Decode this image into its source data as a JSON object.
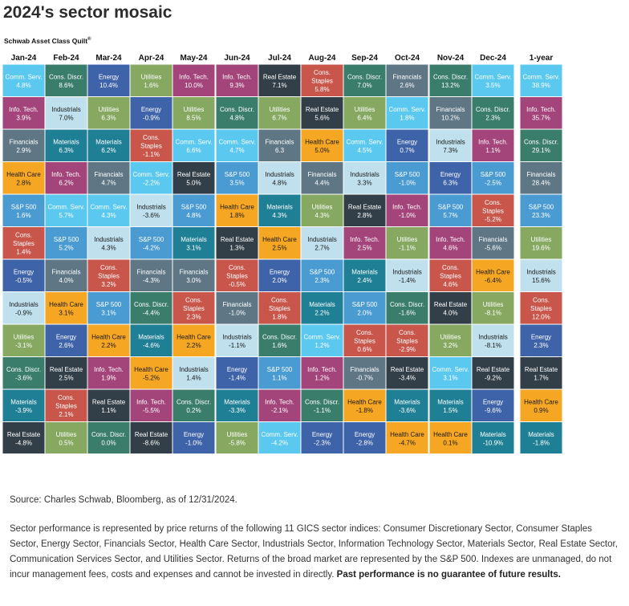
{
  "title": "2024's sector mosaic",
  "subtitle": "Schwab Asset Class Quilt",
  "subtitle_mark": "®",
  "source": "Source: Charles Schwab, Bloomberg, as of 12/31/2024.",
  "disclaimer": "Sector performance is represented by price returns of the following 11 GICS sector indices: Consumer Discretionary Sector, Consumer Staples Sector, Energy Sector, Financials Sector, Health Care Sector, Industrials Sector, Information Technology Sector, Materials Sector, Real Estate Sector, Communication Services Sector, and Utilities Sector. Returns of the broad market are represented by the S&P 500. Indexes are unmanaged, do not incur management fees, costs and expenses and cannot be invested in directly.",
  "disclaimer_bold": "Past performance is no guarantee of future results.",
  "colors": {
    "Comm. Serv.": "#5bc8f0",
    "Cons. Discr.": "#3a7d6b",
    "Energy": "#3f63a8",
    "Utilities": "#86a860",
    "Info. Tech.": "#a3457a",
    "Real Estate": "#333f48",
    "Cons. Staples": "#c9564b",
    "Financials": "#5f7785",
    "Industrials": "#bfe0ec",
    "Health Care": "#f5a623",
    "S&P 500": "#4a9bd2",
    "Materials": "#1e7f95"
  },
  "dark_text_sectors": [
    "Industrials",
    "Health Care"
  ],
  "chart_data": {
    "type": "table",
    "columns": [
      "Jan-24",
      "Feb-24",
      "Mar-24",
      "Apr-24",
      "May-24",
      "Jun-24",
      "Jul-24",
      "Aug-24",
      "Sep-24",
      "Oct-24",
      "Nov-24",
      "Dec-24",
      "1-year"
    ],
    "grid": [
      [
        {
          "sector": "Comm. Serv.",
          "label": "Comm. Serv.",
          "value": "4.8%"
        },
        {
          "sector": "Info. Tech.",
          "label": "Info. Tech.",
          "value": "3.9%"
        },
        {
          "sector": "Financials",
          "label": "Financials",
          "value": "2.9%"
        },
        {
          "sector": "Health Care",
          "label": "Health Care",
          "value": "2.8%"
        },
        {
          "sector": "S&P 500",
          "label": "S&P 500",
          "value": "1.6%"
        },
        {
          "sector": "Cons. Staples",
          "label": "Cons. Staples",
          "value": "1.4%"
        },
        {
          "sector": "Energy",
          "label": "Energy",
          "value": "-0.5%"
        },
        {
          "sector": "Industrials",
          "label": "Industrials",
          "value": "-0.9%"
        },
        {
          "sector": "Utilities",
          "label": "Utilities",
          "value": "-3.1%"
        },
        {
          "sector": "Cons. Discr.",
          "label": "Cons. Discr.",
          "value": "-3.6%"
        },
        {
          "sector": "Materials",
          "label": "Materials",
          "value": "-3.9%"
        },
        {
          "sector": "Real Estate",
          "label": "Real Estate",
          "value": "-4.8%"
        }
      ],
      [
        {
          "sector": "Cons. Discr.",
          "label": "Cons. Discr.",
          "value": "8.6%"
        },
        {
          "sector": "Industrials",
          "label": "Industrials",
          "value": "7.0%"
        },
        {
          "sector": "Materials",
          "label": "Materials",
          "value": "6.3%"
        },
        {
          "sector": "Info. Tech.",
          "label": "Info. Tech.",
          "value": "6.2%"
        },
        {
          "sector": "Comm. Serv.",
          "label": "Comm. Serv.",
          "value": "5.7%"
        },
        {
          "sector": "S&P 500",
          "label": "S&P 500",
          "value": "5.2%"
        },
        {
          "sector": "Financials",
          "label": "Financials",
          "value": "4.0%"
        },
        {
          "sector": "Health Care",
          "label": "Health Care",
          "value": "3.1%"
        },
        {
          "sector": "Energy",
          "label": "Energy",
          "value": "2.6%"
        },
        {
          "sector": "Real Estate",
          "label": "Real Estate",
          "value": "2.5%"
        },
        {
          "sector": "Cons. Staples",
          "label": "Cons. Staples",
          "value": "2.1%"
        },
        {
          "sector": "Utilities",
          "label": "Utilities",
          "value": "0.5%"
        }
      ],
      [
        {
          "sector": "Energy",
          "label": "Energy",
          "value": "10.4%"
        },
        {
          "sector": "Utilities",
          "label": "Utilities",
          "value": "6.3%"
        },
        {
          "sector": "Materials",
          "label": "Materials",
          "value": "6.2%"
        },
        {
          "sector": "Financials",
          "label": "Financials",
          "value": "4.7%"
        },
        {
          "sector": "Comm. Serv.",
          "label": "Comm. Serv.",
          "value": "4.3%"
        },
        {
          "sector": "Industrials",
          "label": "Industrials",
          "value": "4.3%"
        },
        {
          "sector": "Cons. Staples",
          "label": "Cons. Staples",
          "value": "3.2%"
        },
        {
          "sector": "S&P 500",
          "label": "S&P 500",
          "value": "3.1%"
        },
        {
          "sector": "Health Care",
          "label": "Health Care",
          "value": "2.2%"
        },
        {
          "sector": "Info. Tech.",
          "label": "Info. Tech.",
          "value": "1.9%"
        },
        {
          "sector": "Real Estate",
          "label": "Real Estate",
          "value": "1.1%"
        },
        {
          "sector": "Cons. Discr.",
          "label": "Cons. Discr.",
          "value": "0.0%"
        }
      ],
      [
        {
          "sector": "Utilities",
          "label": "Utilities",
          "value": "1.6%"
        },
        {
          "sector": "Energy",
          "label": "Energy",
          "value": "-0.9%"
        },
        {
          "sector": "Cons. Staples",
          "label": "Cons. Staples",
          "value": "-1.1%"
        },
        {
          "sector": "Comm. Serv.",
          "label": "Comm. Serv.",
          "value": "-2.2%"
        },
        {
          "sector": "Industrials",
          "label": "Industrials",
          "value": "-3.6%"
        },
        {
          "sector": "S&P 500",
          "label": "S&P 500",
          "value": "-4.2%"
        },
        {
          "sector": "Financials",
          "label": "Financials",
          "value": "-4.3%"
        },
        {
          "sector": "Cons. Discr.",
          "label": "Cons. Discr.",
          "value": "-4.4%"
        },
        {
          "sector": "Materials",
          "label": "Materials",
          "value": "-4.6%"
        },
        {
          "sector": "Health Care",
          "label": "Health Care",
          "value": "-5.2%"
        },
        {
          "sector": "Info. Tech.",
          "label": "Info. Tech.",
          "value": "-5.5%"
        },
        {
          "sector": "Real Estate",
          "label": "Real Estate",
          "value": "-8.6%"
        }
      ],
      [
        {
          "sector": "Info. Tech.",
          "label": "Info. Tech.",
          "value": "10.0%"
        },
        {
          "sector": "Utilities",
          "label": "Utilities",
          "value": "8.5%"
        },
        {
          "sector": "Comm. Serv.",
          "label": "Comm. Serv.",
          "value": "6.6%"
        },
        {
          "sector": "Real Estate",
          "label": "Real Estate",
          "value": "5.0%"
        },
        {
          "sector": "S&P 500",
          "label": "S&P 500",
          "value": "4.8%"
        },
        {
          "sector": "Materials",
          "label": "Materials",
          "value": "3.1%"
        },
        {
          "sector": "Financials",
          "label": "Financials",
          "value": "3.0%"
        },
        {
          "sector": "Cons. Staples",
          "label": "Cons. Staples",
          "value": "2.3%"
        },
        {
          "sector": "Health Care",
          "label": "Health Care",
          "value": "2.2%"
        },
        {
          "sector": "Industrials",
          "label": "Industrials",
          "value": "1.4%"
        },
        {
          "sector": "Cons. Discr.",
          "label": "Cons. Discr.",
          "value": "0.2%"
        },
        {
          "sector": "Energy",
          "label": "Energy",
          "value": "-1.0%"
        }
      ],
      [
        {
          "sector": "Info. Tech.",
          "label": "Info. Tech.",
          "value": "9.3%"
        },
        {
          "sector": "Cons. Discr.",
          "label": "Cons. Discr.",
          "value": "4.8%"
        },
        {
          "sector": "Comm. Serv.",
          "label": "Comm. Serv.",
          "value": "4.7%"
        },
        {
          "sector": "S&P 500",
          "label": "S&P 500",
          "value": "3.5%"
        },
        {
          "sector": "Health Care",
          "label": "Health Care",
          "value": "1.8%"
        },
        {
          "sector": "Real Estate",
          "label": "Real Estate",
          "value": "1.3%"
        },
        {
          "sector": "Cons. Staples",
          "label": "Cons. Staples",
          "value": "-0.5%"
        },
        {
          "sector": "Financials",
          "label": "Financials",
          "value": "-1.0%"
        },
        {
          "sector": "Industrials",
          "label": "Industrials",
          "value": "-1.1%"
        },
        {
          "sector": "Energy",
          "label": "Energy",
          "value": "-1.4%"
        },
        {
          "sector": "Materials",
          "label": "Materials",
          "value": "-3.3%"
        },
        {
          "sector": "Utilities",
          "label": "Utilities",
          "value": "-5.8%"
        }
      ],
      [
        {
          "sector": "Real Estate",
          "label": "Real Estate",
          "value": "7.1%"
        },
        {
          "sector": "Utilities",
          "label": "Utilities",
          "value": "6.7%"
        },
        {
          "sector": "Financials",
          "label": "Financials",
          "value": "6.3"
        },
        {
          "sector": "Industrials",
          "label": "Industrials",
          "value": "4.8%"
        },
        {
          "sector": "Materials",
          "label": "Materials",
          "value": "4.3%"
        },
        {
          "sector": "Health Care",
          "label": "Health Care",
          "value": "2.5%"
        },
        {
          "sector": "Energy",
          "label": "Energy",
          "value": "2.0%"
        },
        {
          "sector": "Cons. Staples",
          "label": "Cons. Staples",
          "value": "1.8%"
        },
        {
          "sector": "Cons. Discr.",
          "label": "Cons. Discr.",
          "value": "1.6%"
        },
        {
          "sector": "S&P 500",
          "label": "S&P 500",
          "value": "1.1%"
        },
        {
          "sector": "Info. Tech.",
          "label": "Info. Tech.",
          "value": "-2.1%"
        },
        {
          "sector": "Comm. Serv.",
          "label": "Comm. Serv.",
          "value": "-4.2%"
        }
      ],
      [
        {
          "sector": "Cons. Staples",
          "label": "Cons. Staples",
          "value": "5.8%"
        },
        {
          "sector": "Real Estate",
          "label": "Real Estate",
          "value": "5.6%"
        },
        {
          "sector": "Health Care",
          "label": "Health Care",
          "value": "5.0%"
        },
        {
          "sector": "Financials",
          "label": "Financials",
          "value": "4.4%"
        },
        {
          "sector": "Utilities",
          "label": "Utilities",
          "value": "4.3%"
        },
        {
          "sector": "Industrials",
          "label": "Industrials",
          "value": "2.7%"
        },
        {
          "sector": "S&P 500",
          "label": "S&P 500",
          "value": "2.3%"
        },
        {
          "sector": "Materials",
          "label": "Materials",
          "value": "2.2%"
        },
        {
          "sector": "Comm. Serv.",
          "label": "Comm. Serv.",
          "value": "1.2%"
        },
        {
          "sector": "Info. Tech.",
          "label": "Info. Tech.",
          "value": "1.2%"
        },
        {
          "sector": "Cons. Discr.",
          "label": "Cons. Discr.",
          "value": "-1.1%"
        },
        {
          "sector": "Energy",
          "label": "Energy",
          "value": "-2.3%"
        }
      ],
      [
        {
          "sector": "Cons. Discr.",
          "label": "Cons. Discr.",
          "value": "7.0%"
        },
        {
          "sector": "Utilities",
          "label": "Utilities",
          "value": "6.4%"
        },
        {
          "sector": "Comm. Serv.",
          "label": "Comm. Serv.",
          "value": "4.5%"
        },
        {
          "sector": "Industrials",
          "label": "Industrials",
          "value": "3.3%"
        },
        {
          "sector": "Real Estate",
          "label": "Real Estate",
          "value": "2.8%"
        },
        {
          "sector": "Info. Tech.",
          "label": "Info. Tech.",
          "value": "2.5%"
        },
        {
          "sector": "Materials",
          "label": "Materials",
          "value": "2.4%"
        },
        {
          "sector": "S&P 500",
          "label": "S&P 500",
          "value": "2.0%"
        },
        {
          "sector": "Cons. Staples",
          "label": "Cons. Staples",
          "value": "0.6%"
        },
        {
          "sector": "Financials",
          "label": "Financials",
          "value": "-0.7%"
        },
        {
          "sector": "Health Care",
          "label": "Health Care",
          "value": "-1.8%"
        },
        {
          "sector": "Energy",
          "label": "Energy",
          "value": "-2.8%"
        }
      ],
      [
        {
          "sector": "Financials",
          "label": "Financials",
          "value": "2.6%"
        },
        {
          "sector": "Comm. Serv.",
          "label": "Comm. Serv.",
          "value": "1.8%"
        },
        {
          "sector": "Energy",
          "label": "Energy",
          "value": "0.7%"
        },
        {
          "sector": "S&P 500",
          "label": "S&P 500",
          "value": "-1.0%"
        },
        {
          "sector": "Info. Tech.",
          "label": "Info. Tech.",
          "value": "-1.0%"
        },
        {
          "sector": "Utilities",
          "label": "Utilities",
          "value": "-1.1%"
        },
        {
          "sector": "Industrials",
          "label": "Industrials",
          "value": "-1.4%"
        },
        {
          "sector": "Cons. Discr.",
          "label": "Cons. Discr.",
          "value": "-1.6%"
        },
        {
          "sector": "Cons. Staples",
          "label": "Cons. Staples",
          "value": "-2.9%"
        },
        {
          "sector": "Real Estate",
          "label": "Real Estate",
          "value": "-3.4%"
        },
        {
          "sector": "Materials",
          "label": "Materials",
          "value": "-3.6%"
        },
        {
          "sector": "Health Care",
          "label": "Health Care",
          "value": "-4.7%"
        }
      ],
      [
        {
          "sector": "Cons. Discr.",
          "label": "Cons. Discr.",
          "value": "13.2%"
        },
        {
          "sector": "Financials",
          "label": "Financials",
          "value": "10.2%"
        },
        {
          "sector": "Industrials",
          "label": "Industrials",
          "value": "7.3%"
        },
        {
          "sector": "Energy",
          "label": "Energy",
          "value": "6.3%"
        },
        {
          "sector": "S&P 500",
          "label": "S&P 500",
          "value": "5.7%"
        },
        {
          "sector": "Info. Tech.",
          "label": "Info. Tech.",
          "value": "4.6%"
        },
        {
          "sector": "Cons. Staples",
          "label": "Cons. Staples",
          "value": "4.6%"
        },
        {
          "sector": "Real Estate",
          "label": "Real Estate",
          "value": "4.0%"
        },
        {
          "sector": "Utilities",
          "label": "Utilities",
          "value": "3.2%"
        },
        {
          "sector": "Comm. Serv.",
          "label": "Comm. Serv.",
          "value": "3.1%"
        },
        {
          "sector": "Materials",
          "label": "Materials",
          "value": "1.5%"
        },
        {
          "sector": "Health Care",
          "label": "Health Care",
          "value": "0.1%"
        }
      ],
      [
        {
          "sector": "Comm. Serv.",
          "label": "Comm. Serv.",
          "value": "3.5%"
        },
        {
          "sector": "Cons. Discr.",
          "label": "Cons. Discr.",
          "value": "2.3%"
        },
        {
          "sector": "Info. Tech.",
          "label": "Info. Tech.",
          "value": "1.1%"
        },
        {
          "sector": "S&P 500",
          "label": "S&P 500",
          "value": "-2.5%"
        },
        {
          "sector": "Cons. Staples",
          "label": "Cons. Staples",
          "value": "-5.2%"
        },
        {
          "sector": "Financials",
          "label": "Financials",
          "value": "-5.6%"
        },
        {
          "sector": "Health Care",
          "label": "Health Care",
          "value": "-6.4%"
        },
        {
          "sector": "Utilities",
          "label": "Utilities",
          "value": "-8.1%"
        },
        {
          "sector": "Industrials",
          "label": "Industrials",
          "value": "-8.1%"
        },
        {
          "sector": "Real Estate",
          "label": "Real Estate",
          "value": "-9.2%"
        },
        {
          "sector": "Energy",
          "label": "Energy",
          "value": "-9.6%"
        },
        {
          "sector": "Materials",
          "label": "Materials",
          "value": "-10.9%"
        }
      ],
      [
        {
          "sector": "Comm. Serv.",
          "label": "Comm. Serv.",
          "value": "38.9%"
        },
        {
          "sector": "Info. Tech.",
          "label": "Info. Tech.",
          "value": "35.7%"
        },
        {
          "sector": "Cons. Discr.",
          "label": "Cons. Discr.",
          "value": "29.1%"
        },
        {
          "sector": "Financials",
          "label": "Financials",
          "value": "28.4%"
        },
        {
          "sector": "S&P 500",
          "label": "S&P 500",
          "value": "23.3%"
        },
        {
          "sector": "Utilities",
          "label": "Utilities",
          "value": "19.6%"
        },
        {
          "sector": "Industrials",
          "label": "Industrials",
          "value": "15.6%"
        },
        {
          "sector": "Cons. Staples",
          "label": "Cons. Staples",
          "value": "12.0%"
        },
        {
          "sector": "Energy",
          "label": "Energy",
          "value": "2.3%"
        },
        {
          "sector": "Real Estate",
          "label": "Real Estate",
          "value": "1.7%"
        },
        {
          "sector": "Health Care",
          "label": "Health Care",
          "value": "0.9%"
        },
        {
          "sector": "Materials",
          "label": "Materials",
          "value": "-1.8%"
        }
      ]
    ]
  }
}
